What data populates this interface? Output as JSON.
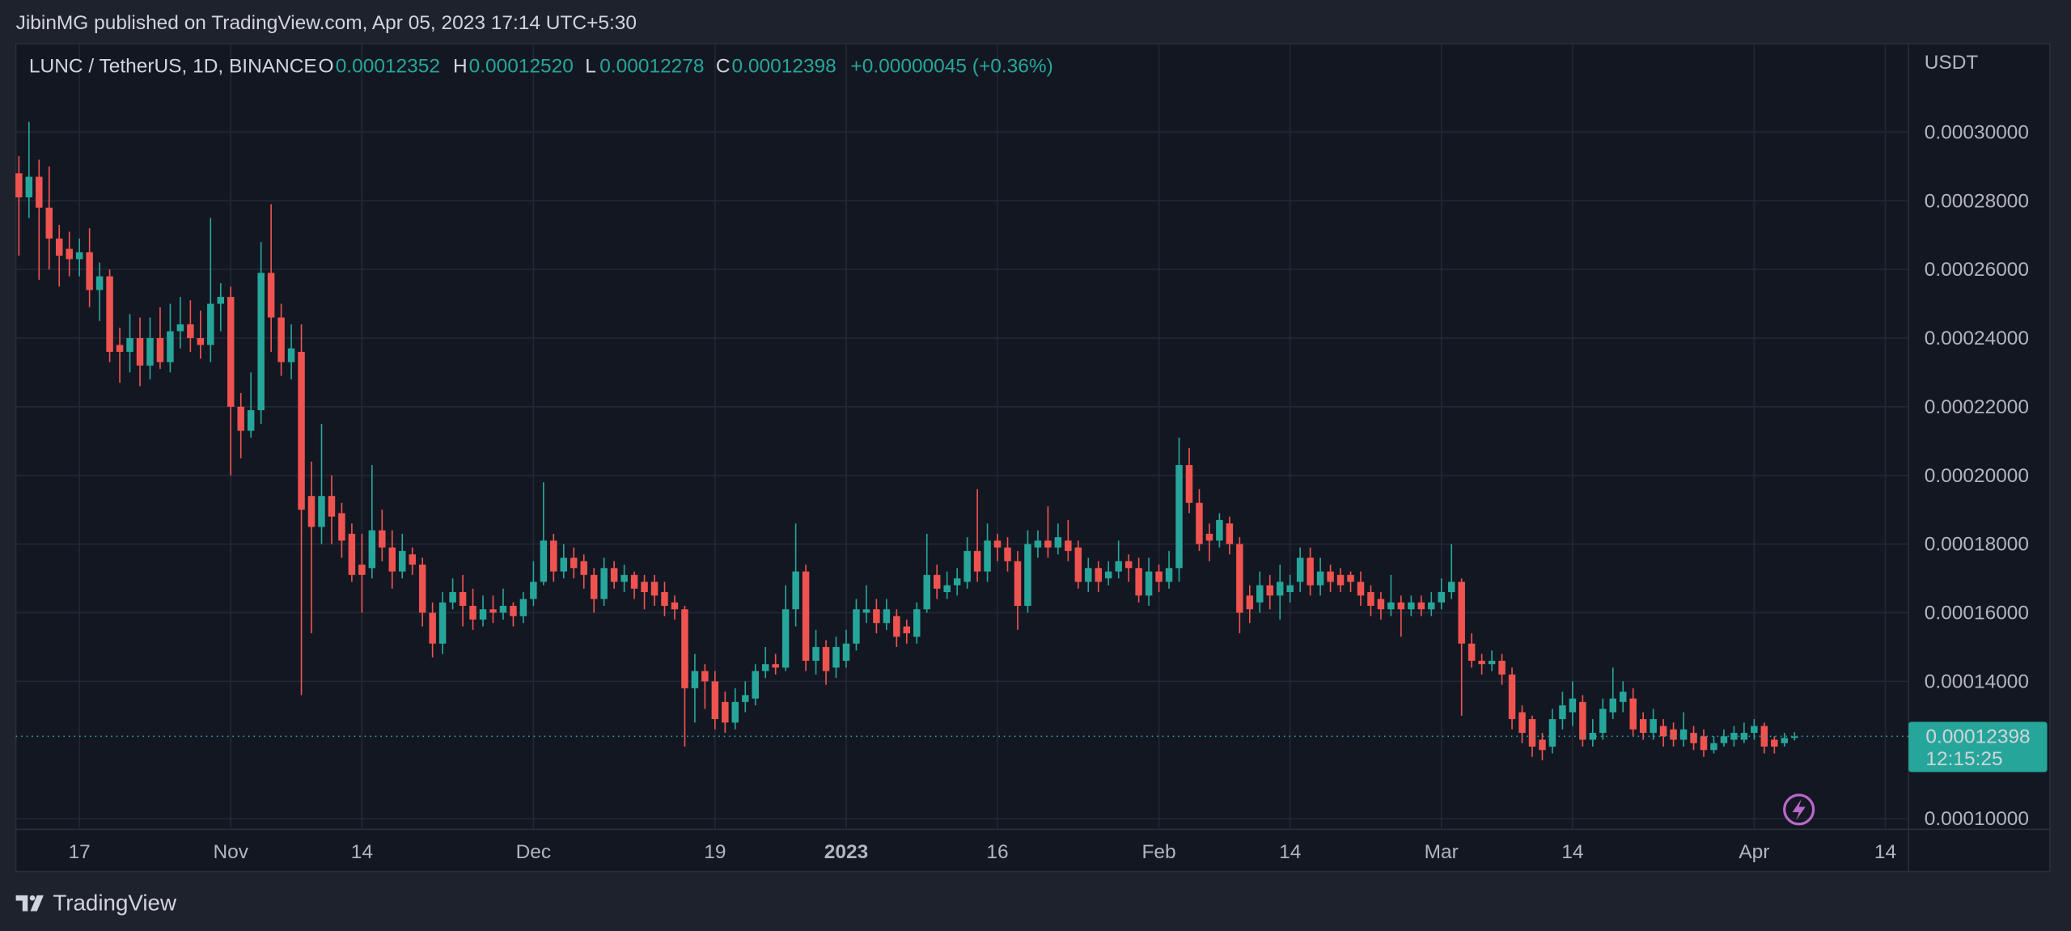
{
  "page": {
    "header": "JibinMG published on TradingView.com, Apr 05, 2023 17:14 UTC+5:30",
    "footer": "TradingView"
  },
  "chart_data": {
    "type": "candlestick",
    "legend": {
      "symbol": "LUNC / TetherUS, 1D, BINANCE",
      "o_label": "O",
      "o": "0.00012352",
      "h_label": "H",
      "h": "0.00012520",
      "l_label": "L",
      "l": "0.00012278",
      "c_label": "C",
      "c": "0.00012398",
      "change": "+0.00000045 (+0.36%)"
    },
    "y_axis_unit": "USDT",
    "up_color": "#26a69a",
    "down_color": "#ef5350",
    "xlim": [
      -0.3,
      187.3
    ],
    "xticks": [
      {
        "value": 6,
        "label": "17"
      },
      {
        "value": 21,
        "label": "Nov"
      },
      {
        "value": 34,
        "label": "14"
      },
      {
        "value": 51,
        "label": "Dec"
      },
      {
        "value": 69,
        "label": "19"
      },
      {
        "value": 82,
        "label": "2023"
      },
      {
        "value": 97,
        "label": "16"
      },
      {
        "value": 113,
        "label": "Feb"
      },
      {
        "value": 126,
        "label": "14"
      },
      {
        "value": 141,
        "label": "Mar"
      },
      {
        "value": 154,
        "label": "14"
      },
      {
        "value": 172,
        "label": "Apr"
      },
      {
        "value": 185,
        "label": "14"
      }
    ],
    "ylim": [
      9.69e-05,
      0.0003258
    ],
    "yticks": [
      {
        "value": 0.0001,
        "label": "0.00010000"
      },
      {
        "value": 0.00014,
        "label": "0.00014000"
      },
      {
        "value": 0.00016,
        "label": "0.00016000"
      },
      {
        "value": 0.00018,
        "label": "0.00018000"
      },
      {
        "value": 0.0002,
        "label": "0.00020000"
      },
      {
        "value": 0.00022,
        "label": "0.00022000"
      },
      {
        "value": 0.00024,
        "label": "0.00024000"
      },
      {
        "value": 0.00026,
        "label": "0.00026000"
      },
      {
        "value": 0.00028,
        "label": "0.00028000"
      },
      {
        "value": 0.0003,
        "label": "0.00030000"
      }
    ],
    "grid": true,
    "last_price": {
      "value": 0.00012398,
      "label": "0.00012398",
      "countdown": "12:15:25"
    },
    "ohlc": [
      [
        0.000288,
        0.000293,
        0.000264,
        0.000281
      ],
      [
        0.000281,
        0.000303,
        0.000275,
        0.000287
      ],
      [
        0.000287,
        0.000292,
        0.000257,
        0.000278
      ],
      [
        0.000278,
        0.00029,
        0.00026,
        0.000269
      ],
      [
        0.000269,
        0.000273,
        0.000255,
        0.000264
      ],
      [
        0.000266,
        0.000271,
        0.000258,
        0.000263
      ],
      [
        0.000263,
        0.000269,
        0.000258,
        0.000265
      ],
      [
        0.000265,
        0.000272,
        0.000249,
        0.000254
      ],
      [
        0.000254,
        0.000262,
        0.000245,
        0.000258
      ],
      [
        0.000258,
        0.00026,
        0.000233,
        0.000236
      ],
      [
        0.000238,
        0.000243,
        0.000227,
        0.000236
      ],
      [
        0.000236,
        0.000247,
        0.00023,
        0.00024
      ],
      [
        0.00024,
        0.000246,
        0.000226,
        0.000232
      ],
      [
        0.000232,
        0.000246,
        0.000228,
        0.00024
      ],
      [
        0.00024,
        0.000249,
        0.000231,
        0.000233
      ],
      [
        0.000233,
        0.00025,
        0.00023,
        0.000242
      ],
      [
        0.000242,
        0.000252,
        0.000237,
        0.000244
      ],
      [
        0.000244,
        0.000251,
        0.000236,
        0.00024
      ],
      [
        0.00024,
        0.000248,
        0.000234,
        0.000238
      ],
      [
        0.000238,
        0.000275,
        0.000233,
        0.00025
      ],
      [
        0.00025,
        0.000256,
        0.000242,
        0.000252
      ],
      [
        0.000252,
        0.000255,
        0.0002,
        0.00022
      ],
      [
        0.00022,
        0.000224,
        0.000205,
        0.000213
      ],
      [
        0.000213,
        0.00023,
        0.000211,
        0.000219
      ],
      [
        0.000219,
        0.000268,
        0.000215,
        0.000259
      ],
      [
        0.000259,
        0.000279,
        0.000236,
        0.000246
      ],
      [
        0.000246,
        0.00025,
        0.000229,
        0.000233
      ],
      [
        0.000233,
        0.000244,
        0.000228,
        0.000237
      ],
      [
        0.000236,
        0.000244,
        0.000136,
        0.00019
      ],
      [
        0.000194,
        0.000204,
        0.000154,
        0.000185
      ],
      [
        0.000185,
        0.000215,
        0.00018,
        0.000194
      ],
      [
        0.000194,
        0.0002,
        0.00018,
        0.000188
      ],
      [
        0.000189,
        0.000192,
        0.000176,
        0.000181
      ],
      [
        0.000183,
        0.000186,
        0.000169,
        0.000171
      ],
      [
        0.000174,
        0.000183,
        0.00016,
        0.000171
      ],
      [
        0.000173,
        0.000203,
        0.00017,
        0.000184
      ],
      [
        0.000184,
        0.00019,
        0.000175,
        0.000179
      ],
      [
        0.000179,
        0.000184,
        0.000167,
        0.000172
      ],
      [
        0.000172,
        0.000183,
        0.00017,
        0.000178
      ],
      [
        0.000177,
        0.000179,
        0.000171,
        0.000174
      ],
      [
        0.000174,
        0.000176,
        0.000156,
        0.00016
      ],
      [
        0.00016,
        0.000163,
        0.000147,
        0.000151
      ],
      [
        0.000151,
        0.000166,
        0.000148,
        0.000163
      ],
      [
        0.000163,
        0.00017,
        0.000161,
        0.000166
      ],
      [
        0.000166,
        0.000171,
        0.000156,
        0.000162
      ],
      [
        0.000162,
        0.000167,
        0.000155,
        0.000158
      ],
      [
        0.000158,
        0.000165,
        0.000156,
        0.000161
      ],
      [
        0.000161,
        0.000165,
        0.000157,
        0.00016
      ],
      [
        0.00016,
        0.000167,
        0.000158,
        0.000162
      ],
      [
        0.000162,
        0.000163,
        0.000156,
        0.000159
      ],
      [
        0.000159,
        0.000166,
        0.000157,
        0.000164
      ],
      [
        0.000164,
        0.000175,
        0.000162,
        0.000169
      ],
      [
        0.000169,
        0.000198,
        0.000168,
        0.000181
      ],
      [
        0.000181,
        0.000183,
        0.000169,
        0.000172
      ],
      [
        0.000172,
        0.00018,
        0.00017,
        0.000176
      ],
      [
        0.000176,
        0.000179,
        0.00017,
        0.000173
      ],
      [
        0.000175,
        0.000177,
        0.000167,
        0.000171
      ],
      [
        0.000171,
        0.000173,
        0.00016,
        0.000164
      ],
      [
        0.000164,
        0.000176,
        0.000162,
        0.000173
      ],
      [
        0.000173,
        0.000175,
        0.000167,
        0.000169
      ],
      [
        0.000169,
        0.000174,
        0.000166,
        0.000171
      ],
      [
        0.000171,
        0.000172,
        0.000164,
        0.000167
      ],
      [
        0.000169,
        0.000171,
        0.000161,
        0.000166
      ],
      [
        0.000169,
        0.000171,
        0.000162,
        0.000165
      ],
      [
        0.000166,
        0.000169,
        0.000159,
        0.000162
      ],
      [
        0.000163,
        0.000165,
        0.000158,
        0.000161
      ],
      [
        0.000161,
        0.000162,
        0.000121,
        0.000138
      ],
      [
        0.000138,
        0.000148,
        0.000128,
        0.000143
      ],
      [
        0.000143,
        0.000145,
        0.000132,
        0.00014
      ],
      [
        0.00014,
        0.000143,
        0.000126,
        0.000129
      ],
      [
        0.000134,
        0.000137,
        0.000125,
        0.000128
      ],
      [
        0.000128,
        0.000138,
        0.000126,
        0.000134
      ],
      [
        0.000134,
        0.00014,
        0.000131,
        0.000136
      ],
      [
        0.000135,
        0.000145,
        0.000133,
        0.000143
      ],
      [
        0.000143,
        0.00015,
        0.000141,
        0.000145
      ],
      [
        0.000145,
        0.000148,
        0.000142,
        0.000144
      ],
      [
        0.000144,
        0.000168,
        0.000143,
        0.000161
      ],
      [
        0.000161,
        0.000186,
        0.000156,
        0.000172
      ],
      [
        0.000172,
        0.000174,
        0.000143,
        0.000146
      ],
      [
        0.000146,
        0.000155,
        0.000142,
        0.00015
      ],
      [
        0.00015,
        0.000152,
        0.000139,
        0.000143
      ],
      [
        0.000144,
        0.000153,
        0.000141,
        0.00015
      ],
      [
        0.000146,
        0.000155,
        0.000144,
        0.000151
      ],
      [
        0.000151,
        0.000164,
        0.000149,
        0.000161
      ],
      [
        0.00016,
        0.000168,
        0.000157,
        0.000161
      ],
      [
        0.000161,
        0.000164,
        0.000154,
        0.000157
      ],
      [
        0.000157,
        0.000164,
        0.000155,
        0.000161
      ],
      [
        0.000159,
        0.000161,
        0.00015,
        0.000153
      ],
      [
        0.000156,
        0.000158,
        0.000151,
        0.000154
      ],
      [
        0.000153,
        0.000163,
        0.000151,
        0.000161
      ],
      [
        0.000161,
        0.000183,
        0.00016,
        0.000171
      ],
      [
        0.000171,
        0.000174,
        0.000164,
        0.000167
      ],
      [
        0.000166,
        0.000172,
        0.000164,
        0.000168
      ],
      [
        0.000168,
        0.000173,
        0.000165,
        0.00017
      ],
      [
        0.000169,
        0.000182,
        0.000167,
        0.000178
      ],
      [
        0.000178,
        0.000196,
        0.000169,
        0.000172
      ],
      [
        0.000172,
        0.000186,
        0.000169,
        0.000181
      ],
      [
        0.000181,
        0.000183,
        0.000175,
        0.000179
      ],
      [
        0.000179,
        0.000182,
        0.000172,
        0.000175
      ],
      [
        0.000175,
        0.000178,
        0.000155,
        0.000162
      ],
      [
        0.000162,
        0.000184,
        0.00016,
        0.00018
      ],
      [
        0.000179,
        0.000184,
        0.000176,
        0.000181
      ],
      [
        0.000181,
        0.000191,
        0.000176,
        0.000179
      ],
      [
        0.000179,
        0.000186,
        0.000177,
        0.000182
      ],
      [
        0.000181,
        0.000187,
        0.000175,
        0.000178
      ],
      [
        0.000179,
        0.000181,
        0.000167,
        0.000169
      ],
      [
        0.000169,
        0.000176,
        0.000166,
        0.000173
      ],
      [
        0.000173,
        0.000175,
        0.000166,
        0.000169
      ],
      [
        0.00017,
        0.000175,
        0.000168,
        0.000172
      ],
      [
        0.000172,
        0.000181,
        0.00017,
        0.000175
      ],
      [
        0.000175,
        0.000177,
        0.000169,
        0.000173
      ],
      [
        0.000173,
        0.000176,
        0.000163,
        0.000165
      ],
      [
        0.000165,
        0.000176,
        0.000162,
        0.000172
      ],
      [
        0.000172,
        0.000174,
        0.000166,
        0.000169
      ],
      [
        0.000169,
        0.000178,
        0.000167,
        0.000173
      ],
      [
        0.000173,
        0.000211,
        0.000169,
        0.000203
      ],
      [
        0.000203,
        0.000208,
        0.000189,
        0.000192
      ],
      [
        0.000192,
        0.000196,
        0.000178,
        0.00018
      ],
      [
        0.000183,
        0.000186,
        0.000175,
        0.000181
      ],
      [
        0.000181,
        0.000189,
        0.000179,
        0.000187
      ],
      [
        0.000186,
        0.000188,
        0.000177,
        0.00018
      ],
      [
        0.00018,
        0.000182,
        0.000154,
        0.00016
      ],
      [
        0.000165,
        0.000168,
        0.000157,
        0.000161
      ],
      [
        0.000163,
        0.000172,
        0.00016,
        0.000168
      ],
      [
        0.000168,
        0.000171,
        0.000161,
        0.000165
      ],
      [
        0.000165,
        0.000174,
        0.000158,
        0.000169
      ],
      [
        0.000166,
        0.000171,
        0.000163,
        0.000168
      ],
      [
        0.000169,
        0.000179,
        0.000166,
        0.000176
      ],
      [
        0.000176,
        0.000179,
        0.000165,
        0.000168
      ],
      [
        0.000168,
        0.000176,
        0.000165,
        0.000172
      ],
      [
        0.000172,
        0.000174,
        0.000166,
        0.000169
      ],
      [
        0.000171,
        0.000173,
        0.000166,
        0.000168
      ],
      [
        0.000171,
        0.000172,
        0.000166,
        0.000169
      ],
      [
        0.000169,
        0.000172,
        0.000162,
        0.000165
      ],
      [
        0.000166,
        0.000168,
        0.000159,
        0.000162
      ],
      [
        0.000164,
        0.000166,
        0.000158,
        0.000161
      ],
      [
        0.000161,
        0.000171,
        0.000159,
        0.000163
      ],
      [
        0.000163,
        0.000165,
        0.000153,
        0.000161
      ],
      [
        0.000161,
        0.000165,
        0.000159,
        0.000163
      ],
      [
        0.000163,
        0.000165,
        0.000159,
        0.000161
      ],
      [
        0.000161,
        0.000166,
        0.000159,
        0.000163
      ],
      [
        0.000163,
        0.00017,
        0.000161,
        0.000166
      ],
      [
        0.000166,
        0.00018,
        0.000164,
        0.000169
      ],
      [
        0.000169,
        0.00017,
        0.00013,
        0.000151
      ],
      [
        0.000151,
        0.000154,
        0.000144,
        0.000146
      ],
      [
        0.000146,
        0.000148,
        0.000142,
        0.000145
      ],
      [
        0.000145,
        0.000149,
        0.000143,
        0.000146
      ],
      [
        0.000146,
        0.000148,
        0.000139,
        0.000142
      ],
      [
        0.000142,
        0.000144,
        0.000126,
        0.000129
      ],
      [
        0.000131,
        0.000133,
        0.000122,
        0.000125
      ],
      [
        0.000129,
        0.00013,
        0.000118,
        0.000121
      ],
      [
        0.000123,
        0.000125,
        0.000117,
        0.00012
      ],
      [
        0.000121,
        0.000132,
        0.000119,
        0.000129
      ],
      [
        0.000129,
        0.000137,
        0.000126,
        0.000133
      ],
      [
        0.000131,
        0.00014,
        0.000127,
        0.000135
      ],
      [
        0.000134,
        0.000136,
        0.000121,
        0.000123
      ],
      [
        0.000123,
        0.000129,
        0.000121,
        0.000125
      ],
      [
        0.000125,
        0.000135,
        0.000123,
        0.000132
      ],
      [
        0.000131,
        0.000144,
        0.000129,
        0.000135
      ],
      [
        0.000134,
        0.00014,
        0.000131,
        0.000137
      ],
      [
        0.000135,
        0.000138,
        0.000124,
        0.000126
      ],
      [
        0.000129,
        0.000131,
        0.000123,
        0.000125
      ],
      [
        0.000125,
        0.000132,
        0.000123,
        0.000129
      ],
      [
        0.000127,
        0.000129,
        0.000121,
        0.000124
      ],
      [
        0.000126,
        0.000128,
        0.000121,
        0.000123
      ],
      [
        0.000123,
        0.000131,
        0.000121,
        0.000126
      ],
      [
        0.000125,
        0.000127,
        0.00012,
        0.000122
      ],
      [
        0.000124,
        0.000126,
        0.000118,
        0.00012
      ],
      [
        0.00012,
        0.000124,
        0.000119,
        0.000122
      ],
      [
        0.000122,
        0.000126,
        0.000121,
        0.000124
      ],
      [
        0.000123,
        0.000127,
        0.000121,
        0.000125
      ],
      [
        0.000123,
        0.000128,
        0.000122,
        0.000125
      ],
      [
        0.000125,
        0.000129,
        0.000123,
        0.000127
      ],
      [
        0.000127,
        0.000128,
        0.000119,
        0.000121
      ],
      [
        0.000123,
        0.000124,
        0.000119,
        0.000121
      ],
      [
        0.000122,
        0.000125,
        0.000121,
        0.0001235
      ],
      [
        0.00012352,
        0.0001252,
        0.00012278,
        0.00012398
      ]
    ]
  }
}
